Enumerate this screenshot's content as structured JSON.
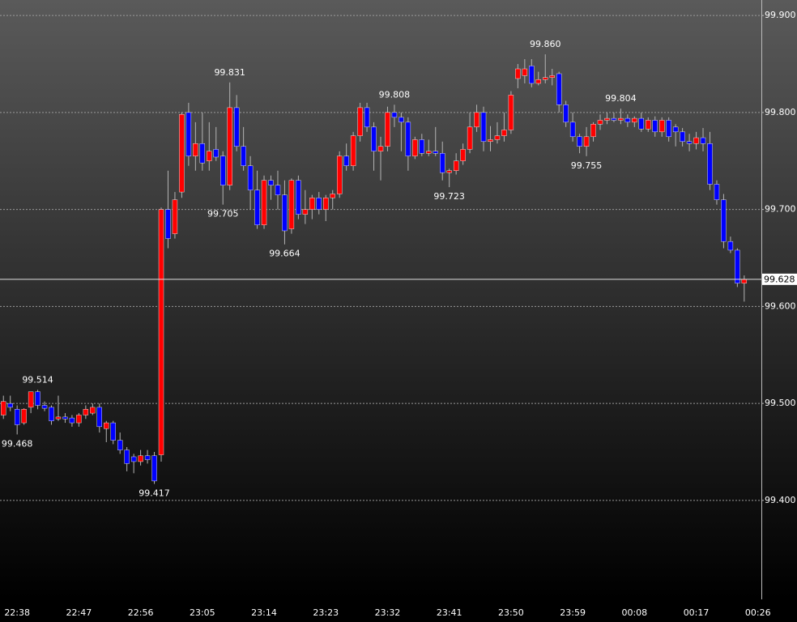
{
  "chart_data": {
    "type": "candlestick",
    "categories": [
      null,
      null,
      "22:38",
      null,
      null,
      null,
      null,
      null,
      null,
      null,
      null,
      "22:47",
      null,
      null,
      null,
      null,
      null,
      null,
      null,
      null,
      "22:56",
      null,
      null,
      null,
      null,
      null,
      null,
      null,
      null,
      "23:05",
      null,
      null,
      null,
      null,
      null,
      null,
      null,
      null,
      "23:14",
      null,
      null,
      null,
      null,
      null,
      null,
      null,
      null,
      "23:23",
      null,
      null,
      null,
      null,
      null,
      null,
      null,
      null,
      "23:32",
      null,
      null,
      null,
      null,
      null,
      null,
      null,
      null,
      "23:41",
      null,
      null,
      null,
      null,
      null,
      null,
      null,
      null,
      "23:50",
      null,
      null,
      null,
      null,
      null,
      null,
      null,
      null,
      "23:59",
      null,
      null,
      null,
      null,
      null,
      null,
      null,
      null,
      "00:08",
      null,
      null,
      null,
      null,
      null,
      null,
      null,
      null,
      "00:17",
      null,
      null,
      null,
      null,
      null,
      null,
      null,
      null,
      "00:26"
    ],
    "open": [
      99.488,
      99.5,
      99.494,
      99.48,
      99.496,
      99.512,
      99.498,
      99.496,
      99.484,
      99.486,
      99.485,
      99.48,
      99.488,
      99.49,
      99.496,
      99.474,
      99.48,
      99.462,
      99.452,
      99.445,
      99.44,
      99.446,
      99.446,
      99.447,
      99.7,
      99.675,
      99.718,
      99.8,
      99.755,
      99.768,
      99.75,
      99.762,
      99.755,
      99.725,
      99.805,
      99.765,
      99.745,
      99.72,
      99.684,
      99.73,
      99.725,
      99.715,
      99.68,
      99.73,
      99.695,
      99.7,
      99.712,
      99.7,
      99.712,
      99.716,
      99.755,
      99.745,
      99.776,
      99.805,
      99.785,
      99.76,
      99.765,
      99.8,
      99.795,
      99.79,
      99.755,
      99.772,
      99.758,
      99.76,
      99.758,
      99.738,
      99.74,
      99.75,
      99.762,
      99.785,
      99.8,
      99.77,
      99.772,
      99.776,
      99.782,
      99.835,
      99.838,
      99.848,
      99.83,
      99.834,
      99.836,
      99.84,
      99.808,
      99.79,
      99.775,
      99.765,
      99.775,
      99.788,
      99.792,
      99.794,
      99.792,
      99.794,
      99.79,
      99.794,
      99.783,
      99.792,
      99.78,
      99.792,
      99.785,
      99.78,
      99.77,
      99.768,
      99.774,
      99.768,
      99.726,
      99.71,
      99.667,
      99.658,
      99.624,
      null,
      null
    ],
    "high": [
      99.508,
      99.508,
      99.498,
      99.495,
      99.512,
      99.514,
      99.502,
      99.498,
      99.508,
      99.49,
      99.488,
      99.49,
      99.498,
      99.5,
      99.5,
      99.482,
      99.482,
      99.47,
      99.455,
      99.448,
      99.452,
      99.452,
      99.45,
      99.702,
      99.74,
      99.718,
      99.8,
      99.81,
      99.79,
      99.8,
      99.79,
      99.785,
      99.76,
      99.831,
      99.818,
      99.785,
      99.755,
      99.74,
      99.735,
      99.735,
      99.74,
      99.73,
      99.732,
      99.735,
      99.72,
      99.715,
      99.718,
      99.715,
      99.72,
      99.76,
      99.768,
      99.78,
      99.81,
      99.81,
      99.79,
      99.775,
      99.806,
      99.808,
      99.8,
      99.795,
      99.775,
      99.778,
      99.772,
      99.785,
      99.77,
      99.742,
      99.758,
      99.768,
      99.8,
      99.808,
      99.806,
      99.786,
      99.79,
      99.8,
      99.822,
      99.85,
      99.855,
      99.855,
      99.842,
      99.86,
      99.845,
      99.842,
      99.812,
      99.8,
      99.778,
      99.785,
      99.79,
      99.798,
      99.8,
      99.8,
      99.804,
      99.798,
      99.796,
      99.8,
      99.795,
      99.796,
      99.795,
      99.795,
      99.788,
      99.784,
      99.778,
      99.78,
      99.784,
      99.78,
      99.73,
      99.716,
      99.672,
      99.66,
      99.632,
      null,
      null
    ],
    "low": [
      99.484,
      99.492,
      99.468,
      99.478,
      99.49,
      99.494,
      99.492,
      99.478,
      99.482,
      99.48,
      99.476,
      99.476,
      99.484,
      99.488,
      99.47,
      99.46,
      99.458,
      99.448,
      99.43,
      99.428,
      99.436,
      99.438,
      99.417,
      99.44,
      99.66,
      99.67,
      99.712,
      99.745,
      99.74,
      99.74,
      99.74,
      99.75,
      99.705,
      99.72,
      99.76,
      99.74,
      99.7,
      99.68,
      99.68,
      99.71,
      99.7,
      99.664,
      99.675,
      99.69,
      99.685,
      99.69,
      99.695,
      99.688,
      99.7,
      99.712,
      99.74,
      99.74,
      99.77,
      99.78,
      99.74,
      99.73,
      99.76,
      99.785,
      99.76,
      99.74,
      99.752,
      99.755,
      99.755,
      99.755,
      99.73,
      99.723,
      99.736,
      99.746,
      99.758,
      99.78,
      99.76,
      99.76,
      99.768,
      99.77,
      99.778,
      99.825,
      99.83,
      99.826,
      99.828,
      99.83,
      99.828,
      99.8,
      99.785,
      99.77,
      99.758,
      99.755,
      99.77,
      99.782,
      99.788,
      99.79,
      99.788,
      99.785,
      99.785,
      99.78,
      99.78,
      99.775,
      99.775,
      99.77,
      99.765,
      99.765,
      99.76,
      99.762,
      99.76,
      99.72,
      99.705,
      99.66,
      99.655,
      99.62,
      99.605,
      null,
      null
    ],
    "close": [
      99.502,
      99.496,
      99.478,
      99.494,
      99.512,
      99.498,
      99.495,
      99.482,
      99.486,
      99.484,
      99.48,
      99.488,
      99.494,
      99.496,
      99.476,
      99.48,
      99.462,
      99.452,
      99.438,
      99.44,
      99.446,
      99.442,
      99.42,
      99.7,
      99.67,
      99.71,
      99.798,
      99.755,
      99.768,
      99.748,
      99.76,
      99.754,
      99.725,
      99.805,
      99.765,
      99.745,
      99.72,
      99.684,
      99.73,
      99.725,
      99.715,
      99.678,
      99.73,
      99.695,
      99.7,
      99.712,
      99.7,
      99.712,
      99.716,
      99.755,
      99.745,
      99.776,
      99.805,
      99.785,
      99.76,
      99.765,
      99.8,
      99.795,
      99.79,
      99.755,
      99.772,
      99.758,
      99.76,
      99.758,
      99.738,
      99.74,
      99.75,
      99.762,
      99.785,
      99.8,
      99.77,
      99.772,
      99.776,
      99.782,
      99.818,
      99.845,
      99.845,
      99.83,
      99.834,
      99.836,
      99.838,
      99.808,
      99.79,
      99.775,
      99.765,
      99.775,
      99.788,
      99.792,
      99.794,
      99.792,
      99.794,
      99.79,
      99.794,
      99.783,
      99.792,
      99.78,
      99.792,
      99.775,
      99.78,
      99.77,
      99.768,
      99.774,
      99.768,
      99.726,
      99.71,
      99.667,
      99.658,
      99.624,
      99.628,
      null,
      null
    ],
    "high_labels": [
      null,
      null,
      null,
      null,
      null,
      "99.514",
      null,
      null,
      null,
      null,
      null,
      null,
      null,
      null,
      null,
      null,
      null,
      null,
      null,
      null,
      null,
      null,
      null,
      null,
      null,
      null,
      null,
      null,
      null,
      null,
      null,
      null,
      null,
      "99.831",
      null,
      null,
      null,
      null,
      null,
      null,
      null,
      null,
      null,
      null,
      null,
      null,
      null,
      null,
      null,
      null,
      null,
      null,
      null,
      null,
      null,
      null,
      null,
      "99.808",
      null,
      null,
      null,
      null,
      null,
      null,
      null,
      null,
      null,
      null,
      null,
      null,
      null,
      null,
      null,
      null,
      null,
      null,
      null,
      null,
      null,
      "99.860",
      null,
      null,
      null,
      null,
      null,
      null,
      null,
      null,
      null,
      null,
      "99.804",
      null,
      null,
      null,
      null,
      null,
      null,
      null,
      null,
      null,
      null,
      null,
      null,
      null,
      null,
      null,
      null,
      null,
      null,
      null,
      null
    ],
    "low_labels": [
      null,
      null,
      "99.468",
      null,
      null,
      null,
      null,
      null,
      null,
      null,
      null,
      null,
      null,
      null,
      null,
      null,
      null,
      null,
      null,
      null,
      null,
      null,
      "99.417",
      null,
      null,
      null,
      null,
      null,
      null,
      null,
      null,
      null,
      "99.705",
      null,
      null,
      null,
      null,
      null,
      null,
      null,
      null,
      "99.664",
      null,
      null,
      null,
      null,
      null,
      null,
      null,
      null,
      null,
      null,
      null,
      null,
      null,
      null,
      null,
      null,
      null,
      null,
      null,
      null,
      null,
      null,
      null,
      "99.723",
      null,
      null,
      null,
      null,
      null,
      null,
      null,
      null,
      null,
      null,
      null,
      null,
      null,
      null,
      null,
      null,
      null,
      null,
      null,
      "99.755",
      null,
      null,
      null,
      null,
      null,
      null,
      null,
      null,
      null,
      null,
      null,
      null,
      null,
      null,
      null,
      null,
      null,
      null,
      null,
      null,
      null,
      null,
      null,
      null,
      null
    ],
    "up_color": "#ff0000",
    "down_color": "#0000ff",
    "wick_color": "#b4b4b4",
    "last_price": 99.628,
    "ylim": [
      99.298,
      99.916
    ],
    "yticks": [
      {
        "value": 99.4,
        "label": "99.400"
      },
      {
        "value": 99.5,
        "label": "99.500"
      },
      {
        "value": 99.6,
        "label": "99.600"
      },
      {
        "value": 99.7,
        "label": "99.700"
      },
      {
        "value": 99.8,
        "label": "99.800"
      },
      {
        "value": 99.9,
        "label": "99.900"
      }
    ],
    "grid": true
  }
}
